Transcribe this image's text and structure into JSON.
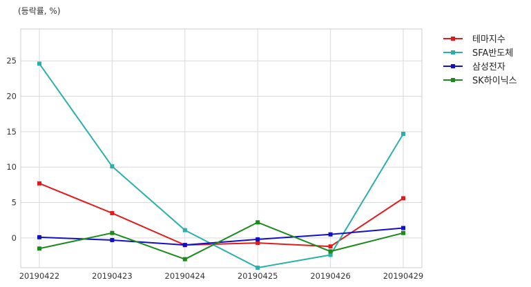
{
  "chart_data": {
    "type": "line",
    "unit_label": "(등락률, %)",
    "categories": [
      "20190422",
      "20190423",
      "20190424",
      "20190425",
      "20190426",
      "20190429"
    ],
    "ylim": [
      -4.2,
      29.5
    ],
    "y_ticks": [
      0,
      5,
      10,
      15,
      20,
      25
    ],
    "grid": true,
    "legend_position": "outside-top-right",
    "series": [
      {
        "name": "테마지수",
        "color": "#e31a1c",
        "values": [
          7.7,
          3.5,
          -1.0,
          -0.7,
          -1.2,
          5.6
        ]
      },
      {
        "name": "SFA반도체",
        "color": "#2ab0aa",
        "values": [
          24.6,
          10.1,
          1.1,
          -4.2,
          -2.4,
          14.7
        ]
      },
      {
        "name": "삼성전자",
        "color": "#1010cc",
        "values": [
          0.1,
          -0.3,
          -1.0,
          -0.2,
          0.5,
          1.4
        ]
      },
      {
        "name": "SK하이닉스",
        "color": "#1a8a1a",
        "values": [
          -1.5,
          0.7,
          -3.0,
          2.2,
          -1.9,
          0.7
        ]
      }
    ]
  }
}
